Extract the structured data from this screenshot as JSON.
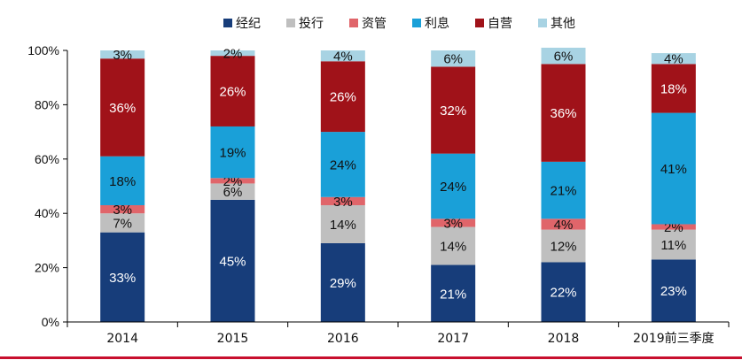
{
  "chart_data": {
    "type": "bar",
    "stacked": true,
    "categories": [
      "2014",
      "2015",
      "2016",
      "2017",
      "2018",
      "2019前三季度"
    ],
    "ylim": [
      0,
      100
    ],
    "yticks": [
      "0%",
      "20%",
      "40%",
      "60%",
      "80%",
      "100%"
    ],
    "legend_position": "top",
    "grid": false,
    "series": [
      {
        "name": "经纪",
        "color": "#173d7a",
        "label_color": "#ffffff",
        "values": [
          33,
          45,
          29,
          21,
          22,
          23
        ]
      },
      {
        "name": "投行",
        "color": "#bfbfbf",
        "label_color": "#111111",
        "values": [
          7,
          6,
          14,
          14,
          12,
          11
        ]
      },
      {
        "name": "资管",
        "color": "#e0656a",
        "label_color": "#111111",
        "values": [
          3,
          2,
          3,
          3,
          4,
          2
        ]
      },
      {
        "name": "利息",
        "color": "#1aa0d8",
        "label_color": "#111111",
        "values": [
          18,
          19,
          24,
          24,
          21,
          41
        ]
      },
      {
        "name": "自营",
        "color": "#a01219",
        "label_color": "#ffffff",
        "values": [
          36,
          26,
          26,
          32,
          36,
          18
        ]
      },
      {
        "name": "其他",
        "color": "#a8d3e3",
        "label_color": "#111111",
        "values": [
          3,
          2,
          4,
          6,
          6,
          4
        ]
      }
    ]
  }
}
